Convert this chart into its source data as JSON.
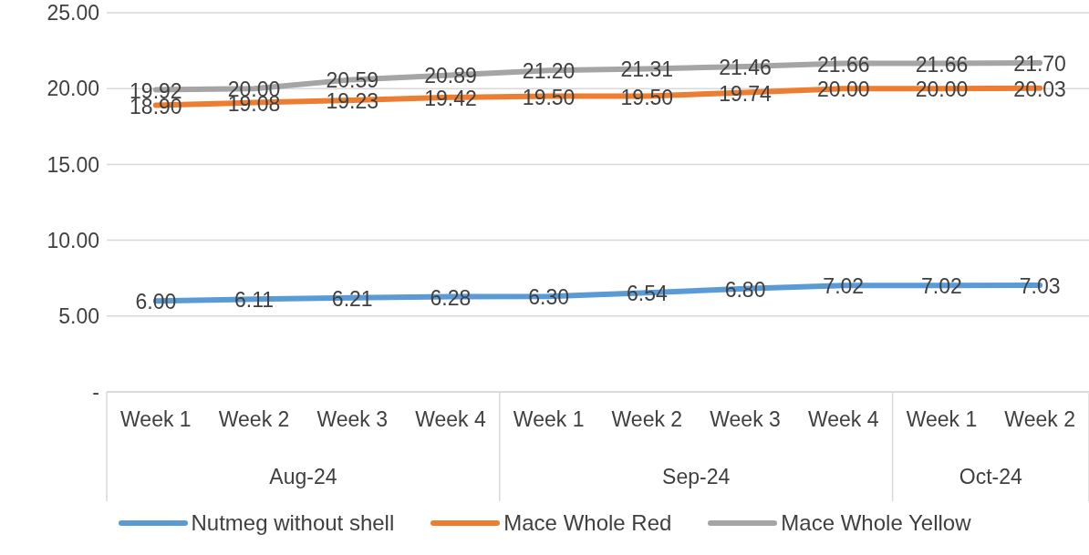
{
  "chart_data": {
    "type": "line",
    "categories": [
      "Week 1",
      "Week 2",
      "Week 3",
      "Week 4",
      "Week 1",
      "Week 2",
      "Week 3",
      "Week 4",
      "Week 1",
      "Week 2"
    ],
    "annotations": [
      "Aug-24",
      "Sep-24",
      "Oct-24"
    ],
    "series": [
      {
        "name": "Nutmeg without shell",
        "color": "#5b9bd5",
        "values": [
          6.0,
          6.11,
          6.21,
          6.28,
          6.3,
          6.54,
          6.8,
          7.02,
          7.02,
          7.03
        ],
        "value_labels": [
          "6.00",
          "6.11",
          "6.21",
          "6.28",
          "6.30",
          "6.54",
          "6.80",
          "7.02",
          "7.02",
          "7.03"
        ]
      },
      {
        "name": "Mace Whole Red",
        "color": "#ed7d31",
        "values": [
          18.9,
          19.08,
          19.23,
          19.42,
          19.5,
          19.5,
          19.74,
          20.0,
          20.0,
          20.03
        ],
        "value_labels": [
          "18.90",
          "19.08",
          "19.23",
          "19.42",
          "19.50",
          "19.50",
          "19.74",
          "20.00",
          "20.00",
          "20.03"
        ]
      },
      {
        "name": "Mace Whole Yellow",
        "color": "#a5a5a5",
        "values": [
          19.92,
          20.0,
          20.59,
          20.89,
          21.2,
          21.31,
          21.46,
          21.66,
          21.66,
          21.7
        ],
        "value_labels": [
          "19.92",
          "20.00",
          "20.59",
          "20.89",
          "21.20",
          "21.31",
          "21.46",
          "21.66",
          "21.66",
          "21.70"
        ]
      }
    ],
    "ylim": [
      0,
      25
    ],
    "yticks": [
      {
        "value": 0,
        "label": "-"
      },
      {
        "value": 5,
        "label": "5.00"
      },
      {
        "value": 10,
        "label": "10.00"
      },
      {
        "value": 15,
        "label": "15.00"
      },
      {
        "value": 20,
        "label": "20.00"
      },
      {
        "value": 25,
        "label": "25.00"
      }
    ],
    "grid": "y",
    "legend": "bottom",
    "marker": "none",
    "line_style": "solid"
  }
}
